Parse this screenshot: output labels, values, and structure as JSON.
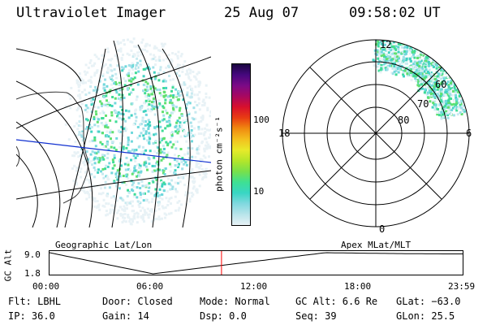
{
  "header": {
    "instrument": "Ultraviolet Imager",
    "date": "25 Aug 07",
    "time": "09:58:02 UT"
  },
  "colorbar": {
    "unit_label": "photon cm⁻²s⁻¹",
    "ticks": [
      "100",
      "10"
    ],
    "colors": [
      "#e8f2f6",
      "#b8e4ea",
      "#80d8df",
      "#38d6c4",
      "#3ee093",
      "#79e04a",
      "#b4e62a",
      "#e8ea2a",
      "#f3c01e",
      "#f08a10",
      "#e83c12",
      "#d8102c",
      "#a80860",
      "#7c0a86",
      "#46087e",
      "#1a0640"
    ]
  },
  "geo_map": {
    "label": "Geographic Lat/Lon"
  },
  "polar_map": {
    "label": "Apex MLat/MLT",
    "mlt_labels": {
      "top": "12",
      "left": "18",
      "right": "6",
      "bottom": "0"
    },
    "lat_labels": [
      "60",
      "70",
      "80"
    ]
  },
  "altitude_plot": {
    "ylabel": "GC Alt",
    "yticks": [
      "9.0",
      "1.8"
    ],
    "xticks": [
      "00:00",
      "06:00",
      "12:00",
      "18:00",
      "23:59"
    ],
    "current_time_marker_hours": 9.97,
    "marker_color": "#ff0000"
  },
  "info": {
    "filter": "Flt: LBHL",
    "ip": "IP: 36.0",
    "door": "Door: Closed",
    "gain": "Gain: 14",
    "mode": "Mode: Normal",
    "dsp": "Dsp:    0.0",
    "gc_alt": "GC Alt: 6.6 Re",
    "seq": "Seq: 39",
    "glat": "GLat: −63.0",
    "glon": "GLon:  25.5"
  }
}
